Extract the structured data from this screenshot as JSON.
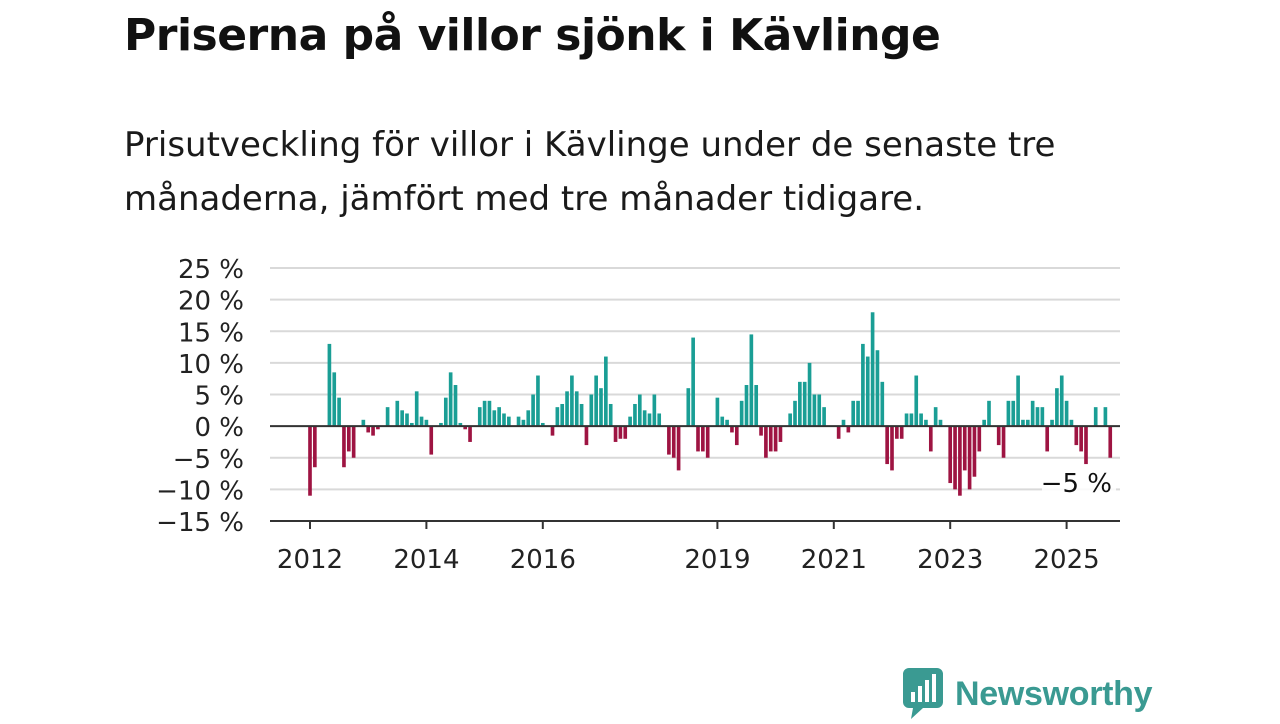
{
  "title": "Priserna på villor sjönk i Kävlinge",
  "subtitle": "Prisutveckling för villor i Kävlinge under de senaste tre månaderna, jämfört med tre månader tidigare.",
  "brand": {
    "name": "Newsworthy",
    "color": "#3a9a92"
  },
  "colors": {
    "positive": "#1a9e95",
    "negative": "#9e1442",
    "grid": "#d9d9d9",
    "zero_line": "#333333"
  },
  "chart_data": {
    "type": "bar",
    "start": "2012-01",
    "ylim": [
      -15,
      25
    ],
    "yticks": [
      25,
      20,
      15,
      10,
      5,
      0,
      -5,
      -10,
      -15
    ],
    "ytick_labels": [
      "25 %",
      "20 %",
      "15 %",
      "10 %",
      "5 %",
      "0 %",
      "−5 %",
      "−10 %",
      "−15 %"
    ],
    "xticks": [
      "2012",
      "2014",
      "2016",
      "2019",
      "2021",
      "2023",
      "2025"
    ],
    "annotation": "−5 %",
    "values": [
      -11,
      -6.5,
      0,
      0,
      13,
      8.5,
      4.5,
      -6.5,
      -4,
      -5,
      0,
      1,
      -1,
      -1.5,
      -0.5,
      0,
      3,
      0,
      4,
      2.5,
      2,
      0.5,
      5.5,
      1.5,
      1,
      -4.5,
      0,
      0.5,
      4.5,
      8.5,
      6.5,
      0.5,
      -0.5,
      -2.5,
      0,
      3,
      4,
      4,
      2.5,
      3,
      2,
      1.5,
      0,
      1.5,
      1,
      2.5,
      5,
      8,
      0.5,
      0,
      -1.5,
      3,
      3.5,
      5.5,
      8,
      5.5,
      3.5,
      -3,
      5,
      8,
      6,
      11,
      3.5,
      -2.5,
      -2,
      -2,
      1.5,
      3.5,
      5,
      2.5,
      2,
      5,
      2,
      0,
      -4.5,
      -5,
      -7,
      0,
      6,
      14,
      -4,
      -4,
      -5,
      0,
      4.5,
      1.5,
      1,
      -1,
      -3,
      4,
      6.5,
      14.5,
      6.5,
      -1.5,
      -5,
      -4,
      -4,
      -2.5,
      0,
      2,
      4,
      7,
      7,
      10,
      5,
      5,
      3,
      0,
      0,
      -2,
      1,
      -1,
      4,
      4,
      13,
      11,
      18,
      12,
      7,
      -6,
      -7,
      -2,
      -2,
      2,
      2,
      8,
      2,
      1,
      -4,
      3,
      1,
      0,
      -9,
      -10,
      -11,
      -7,
      -10,
      -8,
      -4,
      1,
      4,
      0,
      -3,
      -5,
      4,
      4,
      8,
      1,
      1,
      4,
      3,
      3,
      -4,
      1,
      6,
      8,
      4,
      1,
      -3,
      -4,
      -6,
      0,
      3,
      0,
      3,
      -5
    ]
  }
}
